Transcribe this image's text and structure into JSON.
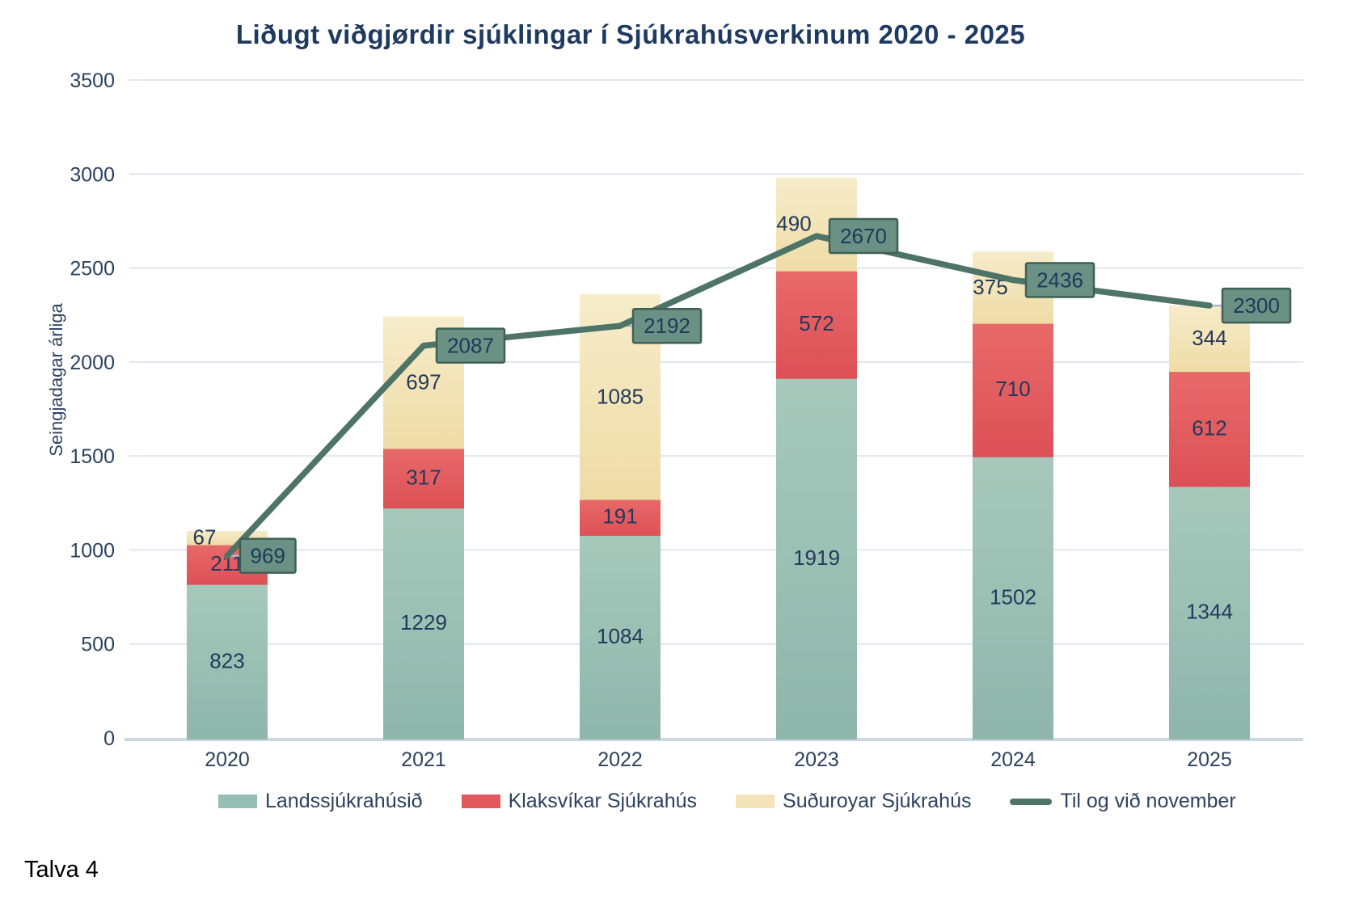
{
  "caption": "Talva 4",
  "colors": {
    "title_text": "#1f3a60",
    "axis_text": "#2c4260",
    "label_text": "#22395c",
    "box_text": "#1d3a5a",
    "gridline": "#e1e6f0",
    "baseline": "#ccd7e2",
    "leader": "#a9b6c9",
    "background": "#ffffff",
    "caption_text": "#000000"
  },
  "chart_data": {
    "type": "bar",
    "subtype": "stacked-bar-with-line",
    "title": "Liðugt viðgjørdir sjúklingar í Sjúkrahúsverkinum 2020 - 2025",
    "xlabel": "",
    "ylabel": "Seingjadagar árliga",
    "categories": [
      "2020",
      "2021",
      "2022",
      "2023",
      "2024",
      "2025"
    ],
    "series": [
      {
        "name": "Landssjúkrahúsið",
        "values": [
          823,
          1229,
          1084,
          1919,
          1502,
          1344
        ],
        "color": "#96bfb3",
        "color_top": "#a6c9bc",
        "color_bottom": "#8fb6ab"
      },
      {
        "name": "Klaksvíkar Sjúkrahús",
        "values": [
          211,
          317,
          191,
          572,
          710,
          612
        ],
        "color": "#e2595d",
        "color_top": "#e96a6a",
        "color_bottom": "#dc5056"
      },
      {
        "name": "Suðuroyar Sjúkrahús",
        "values": [
          67,
          697,
          1085,
          490,
          375,
          344
        ],
        "color": "#f3e5b9",
        "color_top": "#f7ecca",
        "color_bottom": "#eedca6"
      }
    ],
    "line_series": {
      "name": "Til og við november",
      "values": [
        969,
        2087,
        2192,
        2670,
        2436,
        2300
      ],
      "color": "#4e7468",
      "label_box_fill": "#6b9184",
      "label_box_border": "#3f6054"
    },
    "ylim": [
      0,
      3500
    ],
    "yticks": [
      0,
      500,
      1000,
      1500,
      2000,
      2500,
      3000,
      3500
    ],
    "grid": true,
    "legend_position": "bottom"
  }
}
